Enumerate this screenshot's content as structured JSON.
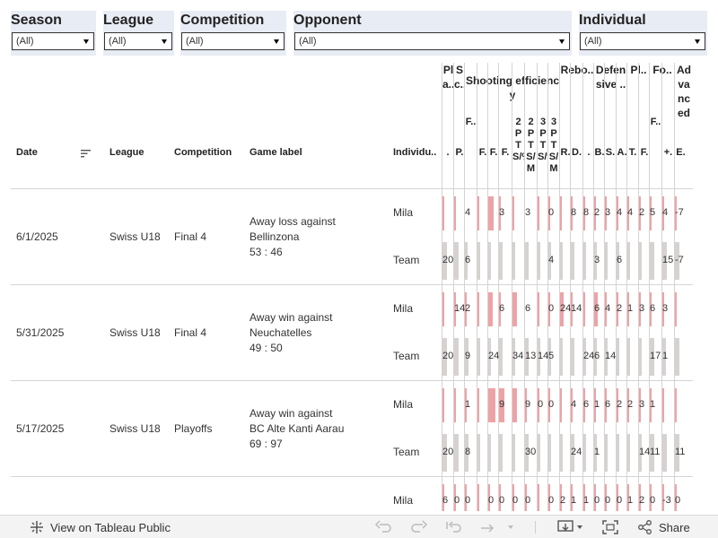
{
  "filters": [
    {
      "title": "Season",
      "value": "(All)"
    },
    {
      "title": "League",
      "value": "(All)"
    },
    {
      "title": "Competition",
      "value": "(All)"
    },
    {
      "title": "Opponent",
      "value": "(All)"
    },
    {
      "title": "Individual",
      "value": "(All)"
    }
  ],
  "headers": {
    "date": "Date",
    "league": "League",
    "competition": "Competition",
    "game_label": "Game label",
    "individual": "Individu.."
  },
  "groups": [
    {
      "label": "Pla.."
    },
    {
      "label": "Sc.."
    },
    {
      "label": "Shooting efficiency"
    },
    {
      "label": "Rebo.."
    },
    {
      "label": "Defensive .."
    },
    {
      "label": "Pl.."
    },
    {
      "label": "Fo.."
    },
    {
      "label": "Advanced .."
    }
  ],
  "stat_headers": [
    ".",
    "P.",
    "F..",
    "F.",
    "F.",
    "F.",
    "2PTS/%",
    "2PTS/M",
    "3PTS/%",
    "3PTS/M",
    "R.",
    "D.",
    ".",
    "B.",
    "S.",
    "A.",
    "T.",
    "F.",
    "F..",
    "+.",
    "E."
  ],
  "chart_data": {
    "type": "table",
    "columns": [
      ".",
      "P.",
      "F..",
      "F.",
      "F.",
      "F.",
      "2PTS/%",
      "2PTS/M",
      "3PTS/%",
      "3PTS/M",
      "R.",
      "D.",
      ".",
      "B.",
      "S.",
      "A.",
      "T.",
      "F.",
      "F..",
      "+.",
      "E."
    ],
    "games": [
      {
        "date": "6/1/2025",
        "league": "Swiss U18",
        "competition": "Final 4",
        "game_label": [
          "Away loss against",
          "Bellinzona",
          "53 : 46"
        ],
        "rows": [
          {
            "individual": "Mila",
            "bars": [
              0.1,
              0.1,
              0,
              0.15,
              0.55,
              0.1,
              0.15,
              0,
              0.1,
              0.05,
              0.1,
              0.1,
              0.1,
              0.1,
              0.1,
              0.1,
              0.1,
              0.1,
              0.1,
              0.1,
              0.1
            ],
            "labels": [
              "",
              "",
              "4",
              "",
              "",
              "3",
              "",
              "3",
              "",
              "0",
              "",
              "8",
              "8",
              "2",
              "3",
              "4",
              "4",
              "2",
              "5",
              "4",
              "-7"
            ]
          },
          {
            "individual": "Team",
            "bars": [
              0.45,
              0.45,
              0.25,
              0.3,
              0.3,
              0.3,
              0.25,
              0.3,
              0.25,
              0.3,
              0.3,
              0.3,
              0.3,
              0.3,
              0.3,
              0.3,
              0.3,
              0.3,
              0.45,
              0.45,
              0.45
            ],
            "labels": [
              "20",
              "",
              "6",
              "",
              "",
              "",
              "",
              "",
              "",
              "4",
              "",
              "",
              "",
              "3",
              "",
              "6",
              "",
              "",
              "",
              "15",
              "-7"
            ]
          }
        ]
      },
      {
        "date": "5/31/2025",
        "league": "Swiss U18",
        "competition": "Final 4",
        "game_label": [
          "Away win against",
          "Neuchatelles",
          "49 : 50"
        ],
        "rows": [
          {
            "individual": "Mila",
            "bars": [
              0.1,
              0.1,
              0.1,
              0.2,
              0.45,
              0.1,
              0.45,
              0,
              0.1,
              0.1,
              0.4,
              0.1,
              0.1,
              0.4,
              0.1,
              0.1,
              0.1,
              0.1,
              0.1,
              0.1,
              0.1
            ],
            "labels": [
              "",
              "14",
              "2",
              "",
              "",
              "6",
              "",
              "6",
              "",
              "0",
              "24",
              "14",
              "",
              "6",
              "4",
              "2",
              "1",
              "3",
              "6",
              "3",
              ""
            ]
          },
          {
            "individual": "Team",
            "bars": [
              0.45,
              0.45,
              0.3,
              0.3,
              0.3,
              0.3,
              0.25,
              0.3,
              0.25,
              0.3,
              0.3,
              0.3,
              0.3,
              0.3,
              0.3,
              0.3,
              0.3,
              0.3,
              0.45,
              0.3,
              0.45
            ],
            "labels": [
              "20",
              "",
              "9",
              "",
              "24",
              "",
              "34",
              "13",
              "14",
              "5",
              "",
              "",
              "24",
              "6",
              "14",
              "",
              "",
              "",
              "17",
              "1",
              ""
            ]
          }
        ]
      },
      {
        "date": "5/17/2025",
        "league": "Swiss U18",
        "competition": "Playoffs",
        "game_label": [
          "Away win against",
          "BC Alte Kanti Aarau",
          "69 : 97"
        ],
        "rows": [
          {
            "individual": "Mila",
            "bars": [
              0.1,
              0.1,
              0.1,
              0.15,
              0.7,
              0.5,
              0.45,
              0.1,
              0.1,
              0.1,
              0.1,
              0.1,
              0.1,
              0.1,
              0.1,
              0.1,
              0.1,
              0.1,
              0.1,
              0.1,
              0.1
            ],
            "labels": [
              "",
              "",
              "1",
              "",
              "",
              "9",
              "",
              "9",
              "0",
              "0",
              "",
              "4",
              "6",
              "1",
              "6",
              "2",
              "2",
              "3",
              "1",
              "",
              ""
            ]
          },
          {
            "individual": "Team",
            "bars": [
              0.45,
              0.45,
              0.3,
              0.3,
              0.3,
              0.3,
              0.25,
              0.3,
              0.25,
              0.3,
              0.3,
              0.3,
              0.3,
              0.3,
              0.3,
              0.3,
              0.3,
              0.3,
              0.45,
              0.45,
              0.45
            ],
            "labels": [
              "20",
              "",
              "8",
              "",
              "",
              "",
              "",
              "30",
              "",
              "",
              "",
              "24",
              "",
              "1",
              "",
              "",
              "",
              "14",
              "11",
              "",
              "11"
            ]
          }
        ]
      },
      {
        "date": "",
        "league": "",
        "competition": "",
        "game_label": [
          "",
          "",
          ""
        ],
        "rows": [
          {
            "individual": "Mila",
            "bars": [
              0.1,
              0.1,
              0.1,
              0.1,
              0.1,
              0.1,
              0.1,
              0.1,
              0.1,
              0.1,
              0.1,
              0.1,
              0.1,
              0.1,
              0.1,
              0.1,
              0.1,
              0.1,
              0.1,
              0.1,
              0.1
            ],
            "labels": [
              "6",
              "0",
              "0",
              "",
              "0",
              "0",
              "0",
              "0",
              "",
              "0",
              "2",
              "1",
              "1",
              "0",
              "0",
              "0",
              "1",
              "2",
              "0",
              "-3",
              "0"
            ]
          }
        ]
      }
    ]
  },
  "colors": {
    "pink": "#eda3a6",
    "grey": "#d6d2cf",
    "filter_bg": "#e8ecf4"
  },
  "toolbar": {
    "view_label": "View on Tableau Public",
    "share_label": "Share"
  }
}
